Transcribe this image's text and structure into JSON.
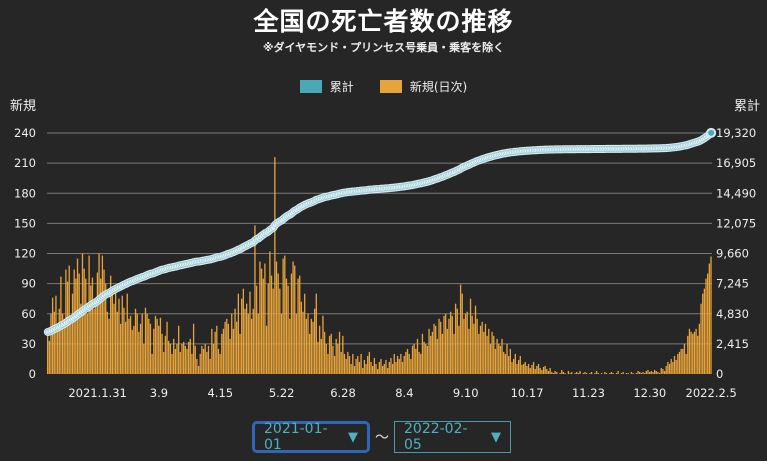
{
  "header": {
    "title": "全国の死亡者数の推移",
    "subtitle": "※ダイヤモンド・プリンセス号乗員・乗客を除く"
  },
  "legend": [
    {
      "label": "累計",
      "color": "#4aa8b8"
    },
    {
      "label": "新規(日次)",
      "color": "#e7a43b"
    }
  ],
  "axis_titles": {
    "left": "新規",
    "right": "累計"
  },
  "date_range": {
    "start": "2021-01-01",
    "separator": "～",
    "end": "2022-02-05",
    "arrow": "▼"
  },
  "chart_data": {
    "type": "bar+line",
    "title": "全国の死亡者数の推移",
    "start_date": "2021-01-01",
    "grid": true,
    "legend_placement": "top-center",
    "left_axis": {
      "label": "新規",
      "range": [
        0,
        240
      ],
      "ticks": [
        "0",
        "30",
        "60",
        "90",
        "120",
        "150",
        "180",
        "210",
        "240"
      ]
    },
    "right_axis": {
      "label": "累計",
      "range": [
        0,
        19320
      ],
      "ticks": [
        "0",
        "2,415",
        "4,830",
        "7,245",
        "9,660",
        "12,075",
        "14,490",
        "16,905",
        "19,320"
      ]
    },
    "xticks": [
      {
        "label": "2021.1.31",
        "date": "2021-01-31"
      },
      {
        "label": "3.9",
        "date": "2021-03-09"
      },
      {
        "label": "4.15",
        "date": "2021-04-15"
      },
      {
        "label": "5.22",
        "date": "2021-05-22"
      },
      {
        "label": "6.28",
        "date": "2021-06-28"
      },
      {
        "label": "8.4",
        "date": "2021-08-04"
      },
      {
        "label": "9.10",
        "date": "2021-09-10"
      },
      {
        "label": "10.17",
        "date": "2021-10-17"
      },
      {
        "label": "11.23",
        "date": "2021-11-23"
      },
      {
        "label": "12.30",
        "date": "2021-12-30"
      },
      {
        "label": "2022.2.5",
        "date": "2022-02-05"
      }
    ],
    "series": [
      {
        "name": "新規(日次)",
        "type": "bar",
        "axis": "left",
        "color": "#e7a43b",
        "values": [
          45,
          33,
          60,
          76,
          62,
          78,
          50,
          65,
          97,
          60,
          55,
          104,
          92,
          108,
          58,
          80,
          104,
          95,
          115,
          100,
          70,
          120,
          105,
          95,
          60,
          118,
          88,
          96,
          65,
          75,
          101,
          120,
          95,
          118,
          104,
          90,
          62,
          55,
          98,
          84,
          70,
          80,
          62,
          75,
          50,
          78,
          66,
          52,
          80,
          55,
          58,
          44,
          48,
          65,
          60,
          42,
          50,
          60,
          30,
          66,
          60,
          55,
          50,
          20,
          45,
          58,
          55,
          48,
          56,
          40,
          22,
          38,
          52,
          33,
          30,
          20,
          35,
          25,
          30,
          48,
          22,
          30,
          32,
          28,
          25,
          32,
          35,
          20,
          50,
          28,
          15,
          8,
          20,
          28,
          25,
          30,
          22,
          28,
          15,
          45,
          30,
          42,
          48,
          25,
          20,
          40,
          45,
          52,
          55,
          50,
          35,
          60,
          45,
          65,
          52,
          80,
          40,
          75,
          85,
          65,
          70,
          60,
          82,
          55,
          65,
          148,
          88,
          60,
          112,
          105,
          95,
          110,
          48,
          90,
          122,
          98,
          85,
          216,
          112,
          100,
          85,
          60,
          115,
          118,
          95,
          88,
          55,
          100,
          112,
          108,
          60,
          95,
          98,
          72,
          62,
          80,
          55,
          60,
          40,
          55,
          52,
          65,
          80,
          32,
          48,
          35,
          58,
          42,
          30,
          20,
          38,
          40,
          28,
          18,
          35,
          30,
          42,
          22,
          38,
          20,
          15,
          22,
          18,
          10,
          20,
          8,
          15,
          18,
          12,
          20,
          6,
          14,
          10,
          18,
          22,
          12,
          8,
          16,
          10,
          5,
          12,
          15,
          8,
          10,
          14,
          6,
          12,
          16,
          10,
          20,
          12,
          18,
          15,
          20,
          12,
          18,
          22,
          25,
          20,
          15,
          28,
          30,
          25,
          35,
          22,
          20,
          40,
          32,
          30,
          28,
          45,
          38,
          42,
          50,
          48,
          35,
          55,
          52,
          40,
          58,
          60,
          45,
          55,
          62,
          58,
          40,
          70,
          65,
          48,
          89,
          80,
          55,
          60,
          62,
          45,
          75,
          58,
          50,
          68,
          55,
          40,
          48,
          52,
          42,
          50,
          38,
          45,
          30,
          42,
          38,
          25,
          35,
          30,
          28,
          35,
          22,
          20,
          30,
          18,
          25,
          12,
          15,
          20,
          10,
          14,
          18,
          9,
          10,
          12,
          8,
          10,
          6,
          9,
          12,
          5,
          8,
          10,
          6,
          4,
          7,
          8,
          5,
          3,
          6,
          2,
          1,
          3,
          2,
          0,
          1,
          4,
          2,
          1,
          0,
          3,
          1,
          2,
          0,
          1,
          2,
          1,
          3,
          0,
          1,
          2,
          1,
          0,
          1,
          2,
          0,
          1,
          3,
          1,
          0,
          1,
          0,
          2,
          1,
          0,
          1,
          2,
          1,
          0,
          1,
          3,
          0,
          1,
          2,
          0,
          1,
          1,
          0,
          2,
          1,
          0,
          1,
          3,
          2,
          1,
          2,
          1,
          3,
          4,
          2,
          3,
          2,
          4,
          3,
          2,
          1,
          6,
          5,
          3,
          8,
          12,
          10,
          15,
          12,
          18,
          14,
          20,
          22,
          25,
          25,
          30,
          20,
          38,
          45,
          42,
          40,
          42,
          45,
          38,
          50,
          70,
          80,
          85,
          95,
          100,
          110,
          117
        ]
      },
      {
        "name": "累計",
        "type": "line",
        "axis": "right",
        "color": "#4aa8b8",
        "cumulative_before_start": 3325,
        "note_values": "running total of 新規 plus cumulative_before_start; final value 19320"
      }
    ]
  }
}
